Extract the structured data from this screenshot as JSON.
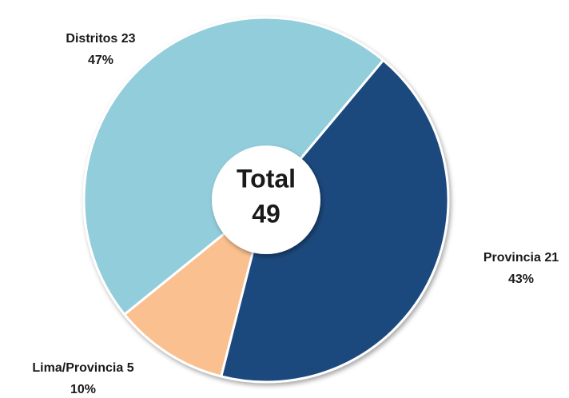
{
  "chart_data": {
    "type": "donut",
    "categories": [
      "Provincia",
      "Lima/Provincia",
      "Distritos"
    ],
    "values": [
      21,
      5,
      23
    ],
    "percents": [
      43,
      10,
      47
    ],
    "percent_labels": [
      "43%",
      "10%",
      "47%"
    ],
    "colors": [
      "#1f497d",
      "#fac090",
      "#92cddc"
    ],
    "center_label": "Total",
    "total": 49
  }
}
